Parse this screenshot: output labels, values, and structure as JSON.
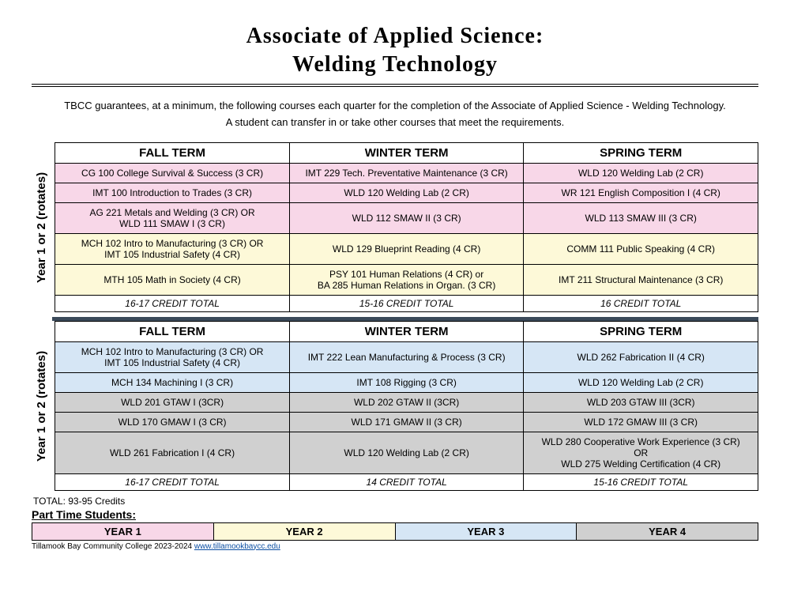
{
  "title_line1": "Associate of Applied Science:",
  "title_line2": "Welding  Technology",
  "intro_line1": "TBCC guarantees, at a minimum, the following courses each quarter for the completion of the Associate of Applied Science - Welding Technology.",
  "intro_line2": "A student can transfer in or take other courses that meet the requirements.",
  "colors": {
    "pink": "#f8d7e8",
    "cream": "#fdf9d8",
    "blue": "#d6e6f5",
    "gray": "#d0d0d0"
  },
  "year_label": "Year 1 or 2 (rotates)",
  "terms": [
    "FALL TERM",
    "WINTER TERM",
    "SPRING TERM"
  ],
  "block1": {
    "rows": [
      {
        "color": "pink",
        "cells": [
          "CG 100 College Survival & Success (3 CR)",
          "IMT 229 Tech. Preventative Maintenance (3 CR)",
          "WLD 120 Welding Lab (2 CR)"
        ]
      },
      {
        "color": "pink",
        "cells": [
          "IMT 100 Introduction to Trades (3 CR)",
          "WLD 120 Welding Lab (2 CR)",
          "WR 121 English Composition I (4 CR)"
        ]
      },
      {
        "color": "pink",
        "cells": [
          "AG 221 Metals and Welding (3 CR) OR\nWLD 111 SMAW I (3 CR)",
          "WLD 112 SMAW II (3 CR)",
          "WLD 113 SMAW III (3 CR)"
        ]
      },
      {
        "color": "cream",
        "cells": [
          "MCH 102 Intro to Manufacturing (3 CR) OR\nIMT 105 Industrial Safety (4 CR)",
          "WLD 129 Blueprint Reading (4 CR)",
          "COMM 111 Public Speaking (4 CR)"
        ]
      },
      {
        "color": "cream",
        "cells": [
          "MTH 105 Math in Society (4 CR)",
          "PSY 101 Human Relations (4 CR) or\nBA 285 Human Relations in Organ. (3 CR)",
          "IMT 211 Structural Maintenance (3 CR)"
        ]
      }
    ],
    "totals": [
      "16-17 CREDIT TOTAL",
      "15-16 CREDIT TOTAL",
      "16 CREDIT TOTAL"
    ]
  },
  "block2": {
    "rows": [
      {
        "color": "blue",
        "cells": [
          "MCH 102 Intro to Manufacturing (3 CR) OR\nIMT 105 Industrial Safety (4 CR)",
          "IMT 222 Lean Manufacturing & Process (3 CR)",
          "WLD 262 Fabrication II (4 CR)"
        ]
      },
      {
        "color": "blue",
        "cells": [
          "MCH 134 Machining I (3 CR)",
          "IMT 108 Rigging (3 CR)",
          "WLD 120 Welding Lab (2 CR)"
        ]
      },
      {
        "color": "gray",
        "cells": [
          "WLD 201 GTAW I (3CR)",
          "WLD 202 GTAW II (3CR)",
          "WLD 203 GTAW III (3CR)"
        ]
      },
      {
        "color": "gray",
        "cells": [
          "WLD 170 GMAW I (3 CR)",
          "WLD 171 GMAW II (3 CR)",
          "WLD 172 GMAW III (3 CR)"
        ]
      },
      {
        "color": "gray",
        "cells": [
          "WLD 261 Fabrication I (4 CR)",
          "WLD 120 Welding Lab (2 CR)",
          "WLD 280 Cooperative Work Experience (3 CR)\nOR\nWLD 275 Welding Certification (4 CR)"
        ]
      }
    ],
    "totals": [
      "16-17 CREDIT TOTAL",
      "14 CREDIT TOTAL",
      "15-16 CREDIT TOTAL"
    ]
  },
  "grand_total": "TOTAL: 93-95 Credits",
  "parttime_heading": "Part Time Students:",
  "years": [
    {
      "label": "YEAR 1",
      "color": "pink"
    },
    {
      "label": "YEAR 2",
      "color": "cream"
    },
    {
      "label": "YEAR 3",
      "color": "blue"
    },
    {
      "label": "YEAR 4",
      "color": "gray"
    }
  ],
  "footer_text": "Tillamook Bay Community College 2023-2024 ",
  "footer_link": "www.tillamookbaycc.edu"
}
